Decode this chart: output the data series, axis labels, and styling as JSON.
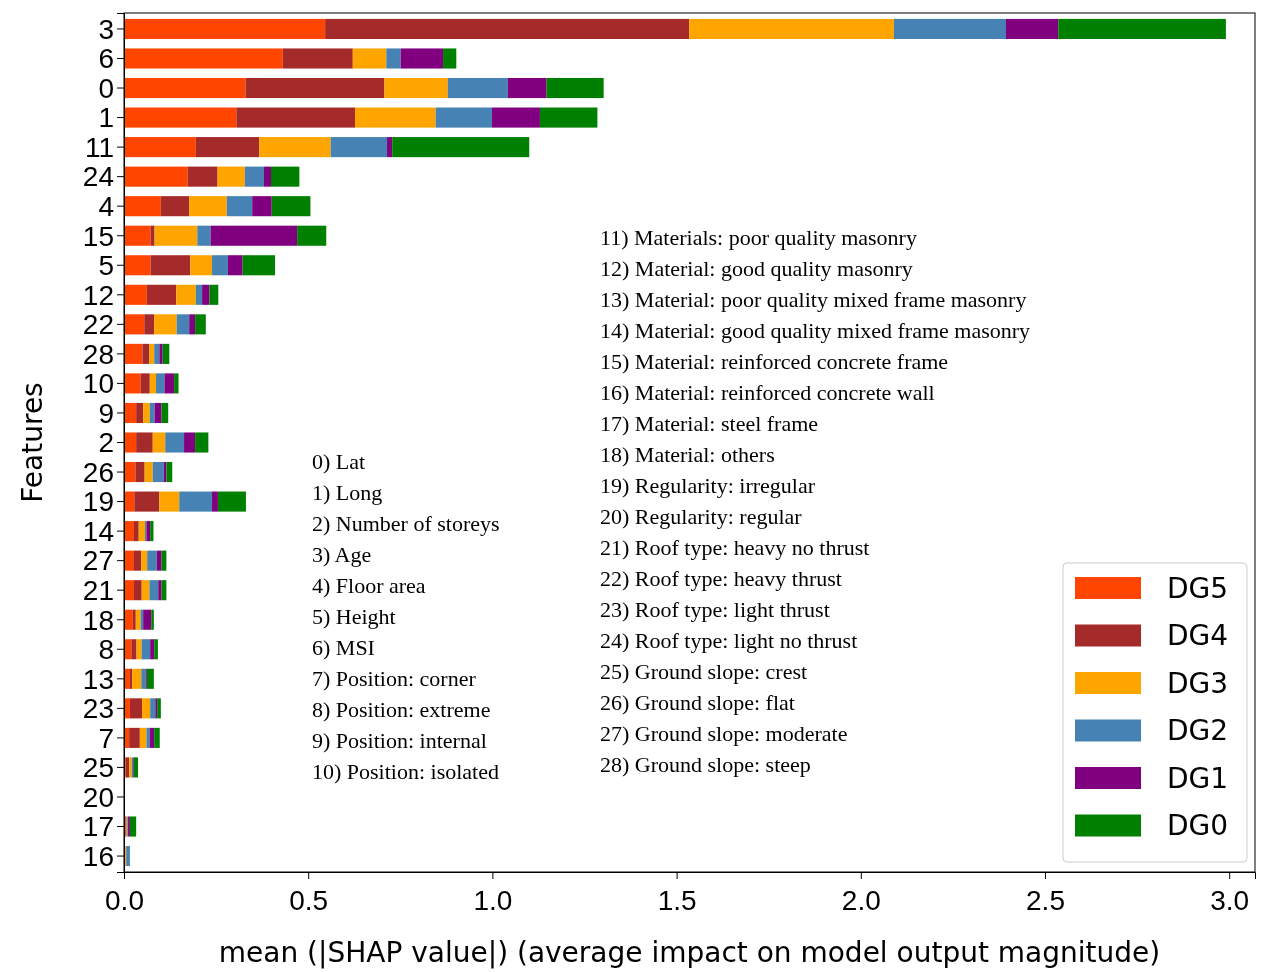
{
  "chart_data": {
    "type": "bar",
    "orientation": "horizontal",
    "stacked": true,
    "ylabel": "Features",
    "xlabel": "mean (|SHAP value|) (average impact on model output magnitude)",
    "categories": [
      "3",
      "6",
      "0",
      "1",
      "11",
      "24",
      "4",
      "15",
      "5",
      "12",
      "22",
      "28",
      "10",
      "9",
      "2",
      "26",
      "19",
      "14",
      "27",
      "21",
      "18",
      "8",
      "13",
      "23",
      "7",
      "25",
      "20",
      "17",
      "16"
    ],
    "xlim": [
      0,
      3.07
    ],
    "xticks": [
      {
        "value": 0,
        "label": "0.0"
      },
      {
        "value": 0.5,
        "label": "0.5"
      },
      {
        "value": 1,
        "label": "1.0"
      },
      {
        "value": 1.5,
        "label": "1.5"
      },
      {
        "value": 2,
        "label": "2.0"
      },
      {
        "value": 2.5,
        "label": "2.5"
      },
      {
        "value": 3,
        "label": "3.0"
      }
    ],
    "grid": false,
    "legend": "bottom right",
    "series": [
      {
        "name": "DG5",
        "color": "#ff4500",
        "values": [
          0.546,
          0.431,
          0.33,
          0.305,
          0.195,
          0.173,
          0.1,
          0.072,
          0.072,
          0.062,
          0.055,
          0.05,
          0.045,
          0.033,
          0.033,
          0.031,
          0.028,
          0.027,
          0.027,
          0.027,
          0.024,
          0.02,
          0.016,
          0.016,
          0.014,
          0.005,
          0,
          0.005,
          0.002
        ]
      },
      {
        "name": "DG4",
        "color": "#a52a2a",
        "values": [
          0.988,
          0.19,
          0.377,
          0.322,
          0.172,
          0.081,
          0.077,
          0.011,
          0.108,
          0.08,
          0.027,
          0.018,
          0.025,
          0.019,
          0.045,
          0.025,
          0.068,
          0.013,
          0.02,
          0.021,
          0.008,
          0.014,
          0.006,
          0.033,
          0.029,
          0.009,
          0,
          0.002,
          0.001
        ]
      },
      {
        "name": "DG3",
        "color": "#ffa500",
        "values": [
          0.556,
          0.091,
          0.172,
          0.219,
          0.194,
          0.074,
          0.102,
          0.116,
          0.059,
          0.053,
          0.061,
          0.014,
          0.017,
          0.018,
          0.034,
          0.022,
          0.054,
          0.017,
          0.016,
          0.021,
          0.013,
          0.014,
          0.025,
          0.022,
          0.018,
          0.007,
          0,
          0.002,
          0.003
        ]
      },
      {
        "name": "DG2",
        "color": "#4682b4",
        "values": [
          0.304,
          0.039,
          0.163,
          0.153,
          0.153,
          0.052,
          0.069,
          0.036,
          0.043,
          0.017,
          0.034,
          0.014,
          0.023,
          0.013,
          0.051,
          0.03,
          0.089,
          0.004,
          0.026,
          0.024,
          0.007,
          0.023,
          0.012,
          0.014,
          0.009,
          0.004,
          0,
          0.002,
          0.01
        ]
      },
      {
        "name": "DG1",
        "color": "#800080",
        "values": [
          0.142,
          0.115,
          0.105,
          0.13,
          0.014,
          0.019,
          0.053,
          0.235,
          0.04,
          0.02,
          0.016,
          0.009,
          0.026,
          0.019,
          0.03,
          0.007,
          0.016,
          0.01,
          0.013,
          0.009,
          0.022,
          0.011,
          0.003,
          0.005,
          0.012,
          0.002,
          0,
          0.005,
          0
        ]
      },
      {
        "name": "DG0",
        "color": "#008000",
        "values": [
          0.455,
          0.036,
          0.155,
          0.156,
          0.372,
          0.077,
          0.105,
          0.079,
          0.088,
          0.024,
          0.029,
          0.018,
          0.012,
          0.018,
          0.036,
          0.016,
          0.076,
          0.009,
          0.013,
          0.013,
          0.007,
          0.01,
          0.019,
          0.01,
          0.015,
          0.011,
          0,
          0.017,
          0
        ]
      }
    ],
    "annotations": [
      "0) Lat",
      "1) Long",
      "2) Number of storeys",
      "3) Age",
      "4) Floor area",
      "5) Height",
      "6) MSI",
      "7) Position: corner",
      "8) Position: extreme",
      "9) Position: internal",
      "10) Position: isolated",
      "11) Materials: poor quality masonry",
      "12) Material: good quality masonry",
      "13) Material: poor quality mixed frame masonry",
      "14) Material: good quality mixed frame masonry",
      "15) Material: reinforced concrete frame",
      "16) Material: reinforced concrete wall",
      "17) Material: steel frame",
      "18) Material: others",
      "19) Regularity: irregular",
      "20) Regularity: regular",
      "21) Roof type: heavy no thrust",
      "22) Roof type: heavy thrust",
      "23) Roof type: light thrust",
      "24) Roof type: light no thrust",
      "25) Ground slope: crest",
      "26) Ground slope: flat",
      "27) Ground slope: moderate",
      "28) Ground slope: steep"
    ]
  }
}
